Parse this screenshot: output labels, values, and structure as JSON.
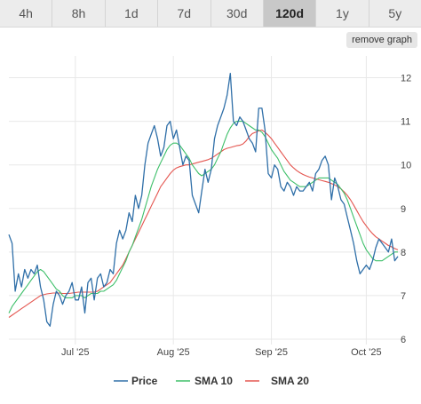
{
  "tabs": [
    {
      "label": "4h",
      "active": false
    },
    {
      "label": "8h",
      "active": false
    },
    {
      "label": "1d",
      "active": false
    },
    {
      "label": "7d",
      "active": false
    },
    {
      "label": "30d",
      "active": false
    },
    {
      "label": "120d",
      "active": true
    },
    {
      "label": "1y",
      "active": false
    },
    {
      "label": "5y",
      "active": false
    }
  ],
  "remove_graph_label": "remove graph",
  "chart_data": {
    "type": "line",
    "x_start": "2025-06-10",
    "ylim": [
      6,
      12.5
    ],
    "yticks": [
      6,
      7,
      8,
      9,
      10,
      11,
      12
    ],
    "xticks": [
      {
        "label": "Jul '25",
        "date": "2025-07-01"
      },
      {
        "label": "Aug '25",
        "date": "2025-08-01"
      },
      {
        "label": "Sep '25",
        "date": "2025-09-01"
      },
      {
        "label": "Oct '25",
        "date": "2025-10-01"
      }
    ],
    "grid": true,
    "legend_position": "bottom",
    "series": [
      {
        "name": "Price",
        "color": "#2f6fa8",
        "values": [
          8.4,
          8.2,
          7.1,
          7.5,
          7.2,
          7.6,
          7.4,
          7.6,
          7.5,
          7.7,
          7.2,
          6.9,
          6.4,
          6.3,
          6.8,
          7.1,
          7.0,
          6.8,
          7.0,
          7.1,
          7.3,
          6.9,
          6.9,
          7.2,
          6.6,
          7.3,
          7.4,
          6.9,
          7.4,
          7.5,
          7.2,
          7.3,
          7.6,
          7.5,
          8.2,
          8.5,
          8.3,
          8.5,
          8.9,
          8.7,
          9.3,
          9.0,
          9.3,
          10.0,
          10.5,
          10.7,
          10.9,
          10.6,
          10.2,
          10.4,
          10.9,
          11.0,
          10.6,
          10.8,
          10.4,
          10.0,
          10.2,
          10.1,
          9.3,
          9.1,
          8.9,
          9.4,
          9.9,
          9.6,
          9.9,
          10.6,
          10.9,
          11.1,
          11.3,
          11.6,
          12.1,
          11.0,
          10.9,
          11.1,
          11.0,
          10.8,
          10.6,
          10.5,
          10.3,
          11.3,
          11.3,
          10.8,
          9.8,
          9.7,
          10.0,
          9.9,
          9.5,
          9.4,
          9.6,
          9.5,
          9.3,
          9.5,
          9.4,
          9.4,
          9.5,
          9.6,
          9.4,
          9.8,
          9.9,
          10.1,
          10.2,
          10.0,
          9.2,
          9.7,
          9.5,
          9.2,
          9.1,
          8.8,
          8.5,
          8.2,
          7.8,
          7.5,
          7.6,
          7.7,
          7.6,
          7.8,
          8.1,
          8.3,
          8.2,
          8.1,
          8.0,
          8.3,
          7.8,
          7.9
        ]
      },
      {
        "name": "SMA 10",
        "color": "#3dbf69",
        "values": [
          6.6,
          6.75,
          6.85,
          6.95,
          7.05,
          7.15,
          7.25,
          7.35,
          7.45,
          7.55,
          7.6,
          7.55,
          7.45,
          7.35,
          7.25,
          7.15,
          7.1,
          7.0,
          6.95,
          6.95,
          6.95,
          7.0,
          7.0,
          7.0,
          6.95,
          7.0,
          7.05,
          7.05,
          7.05,
          7.1,
          7.1,
          7.15,
          7.2,
          7.25,
          7.35,
          7.5,
          7.65,
          7.8,
          8.0,
          8.15,
          8.35,
          8.55,
          8.75,
          9.0,
          9.25,
          9.5,
          9.7,
          9.9,
          10.05,
          10.2,
          10.35,
          10.45,
          10.5,
          10.5,
          10.45,
          10.35,
          10.25,
          10.15,
          10.0,
          9.9,
          9.8,
          9.75,
          9.8,
          9.85,
          9.9,
          10.0,
          10.15,
          10.3,
          10.5,
          10.7,
          10.85,
          10.95,
          11.0,
          11.0,
          11.0,
          10.95,
          10.9,
          10.85,
          10.8,
          10.8,
          10.75,
          10.65,
          10.5,
          10.35,
          10.25,
          10.15,
          10.0,
          9.85,
          9.75,
          9.65,
          9.6,
          9.55,
          9.5,
          9.5,
          9.5,
          9.55,
          9.6,
          9.65,
          9.7,
          9.7,
          9.7,
          9.7,
          9.65,
          9.6,
          9.55,
          9.45,
          9.35,
          9.2,
          9.0,
          8.8,
          8.6,
          8.4,
          8.2,
          8.05,
          7.95,
          7.85,
          7.8,
          7.8,
          7.8,
          7.85,
          7.9,
          7.95,
          8.0,
          8.0
        ]
      },
      {
        "name": "SMA 20",
        "color": "#e4554f",
        "values": [
          6.5,
          6.55,
          6.6,
          6.65,
          6.7,
          6.75,
          6.8,
          6.85,
          6.9,
          6.95,
          7.0,
          7.02,
          7.04,
          7.05,
          7.06,
          7.06,
          7.06,
          7.05,
          7.05,
          7.05,
          7.06,
          7.07,
          7.08,
          7.08,
          7.08,
          7.08,
          7.08,
          7.08,
          7.1,
          7.15,
          7.2,
          7.25,
          7.3,
          7.4,
          7.5,
          7.6,
          7.7,
          7.85,
          8.0,
          8.15,
          8.3,
          8.45,
          8.6,
          8.75,
          8.9,
          9.05,
          9.2,
          9.35,
          9.5,
          9.6,
          9.7,
          9.8,
          9.88,
          9.93,
          9.96,
          9.98,
          10.0,
          10.0,
          10.02,
          10.04,
          10.06,
          10.08,
          10.1,
          10.12,
          10.15,
          10.2,
          10.25,
          10.3,
          10.35,
          10.38,
          10.4,
          10.42,
          10.44,
          10.45,
          10.48,
          10.55,
          10.65,
          10.72,
          10.75,
          10.78,
          10.8,
          10.75,
          10.68,
          10.6,
          10.5,
          10.4,
          10.3,
          10.2,
          10.1,
          10.0,
          9.93,
          9.87,
          9.82,
          9.78,
          9.75,
          9.72,
          9.7,
          9.68,
          9.66,
          9.64,
          9.62,
          9.6,
          9.57,
          9.54,
          9.5,
          9.45,
          9.38,
          9.3,
          9.2,
          9.08,
          8.95,
          8.82,
          8.7,
          8.6,
          8.5,
          8.42,
          8.35,
          8.3,
          8.25,
          8.2,
          8.15,
          8.12,
          8.08,
          8.05
        ]
      }
    ]
  }
}
